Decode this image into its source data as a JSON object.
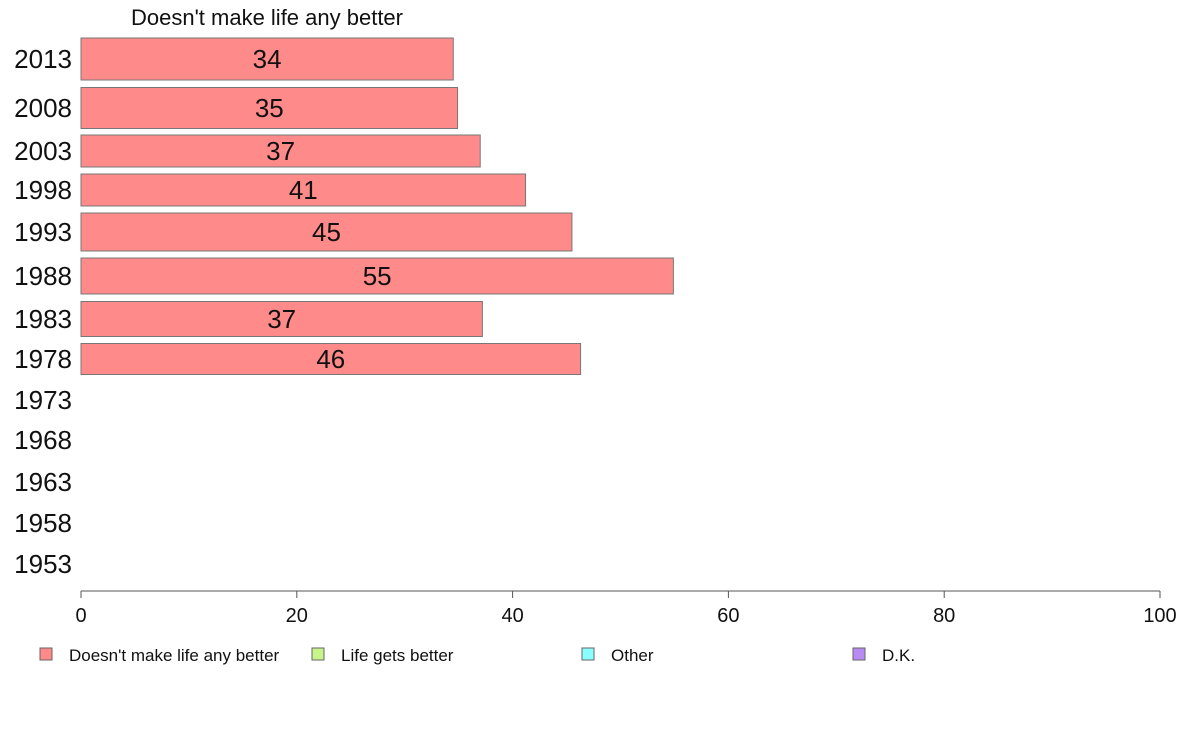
{
  "chart_data": {
    "type": "bar",
    "orientation": "horizontal",
    "title": "Doesn't make life any better",
    "categories": [
      "2013",
      "2008",
      "2003",
      "1998",
      "1993",
      "1988",
      "1983",
      "1978",
      "1973",
      "1968",
      "1963",
      "1958",
      "1953"
    ],
    "series": [
      {
        "name": "Doesn't make life any better",
        "color": "#ff8a8a",
        "values": [
          34.5,
          34.9,
          37.0,
          41.2,
          45.5,
          54.9,
          37.2,
          46.3,
          null,
          null,
          null,
          null,
          null
        ],
        "labels": [
          "34",
          "35",
          "37",
          "41",
          "45",
          "55",
          "37",
          "46",
          "",
          "",
          "",
          "",
          ""
        ]
      }
    ],
    "xlim": [
      0,
      100
    ],
    "xticks": [
      "0",
      "20",
      "40",
      "60",
      "80",
      "100"
    ],
    "grid": false,
    "legend": {
      "position": "bottom",
      "entries": [
        {
          "label": "Doesn't make life any better",
          "color": "#ff8a8a"
        },
        {
          "label": "Life gets better",
          "color": "#c8f58a"
        },
        {
          "label": "Other",
          "color": "#8affff"
        },
        {
          "label": "D.K.",
          "color": "#b98af5"
        }
      ]
    }
  }
}
